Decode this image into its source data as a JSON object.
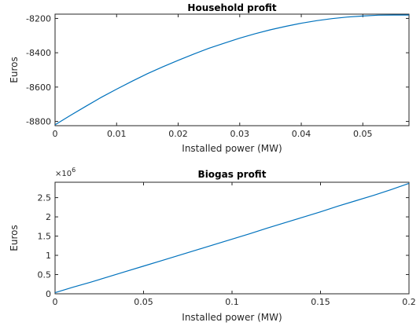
{
  "chart_data": [
    {
      "type": "line",
      "title": "Household profit",
      "xlabel": "Installed power (MW)",
      "ylabel": "Euros",
      "xlim": [
        0,
        0.0575
      ],
      "ylim": [
        -8825,
        -8175
      ],
      "xticks": [
        0,
        0.01,
        0.02,
        0.03,
        0.04,
        0.05
      ],
      "xtick_labels": [
        "0",
        "0.01",
        "0.02",
        "0.03",
        "0.04",
        "0.05"
      ],
      "yticks": [
        -8800,
        -8600,
        -8400,
        -8200
      ],
      "ytick_labels": [
        "-8800",
        "-8600",
        "-8400",
        "-8200"
      ],
      "grid": false,
      "color": "#0072bd",
      "series": [
        {
          "x": [
            0,
            0.0025,
            0.005,
            0.0075,
            0.01,
            0.0125,
            0.015,
            0.0175,
            0.02,
            0.0225,
            0.025,
            0.0275,
            0.03,
            0.0325,
            0.035,
            0.0375,
            0.04,
            0.0425,
            0.045,
            0.0475,
            0.05,
            0.0525,
            0.055,
            0.0575
          ],
          "y": [
            -8820,
            -8765,
            -8712,
            -8660,
            -8612,
            -8566,
            -8522,
            -8482,
            -8444,
            -8408,
            -8374,
            -8344,
            -8315,
            -8289,
            -8266,
            -8246,
            -8228,
            -8213,
            -8201,
            -8192,
            -8186,
            -8181,
            -8180,
            -8180
          ]
        }
      ]
    },
    {
      "type": "line",
      "title": "Biogas profit",
      "xlabel": "Installed power (MW)",
      "ylabel": "Euros",
      "exponent_label": "×10",
      "exponent_power": "6",
      "xlim": [
        0,
        0.2
      ],
      "ylim": [
        0,
        2.9
      ],
      "xticks": [
        0,
        0.05,
        0.1,
        0.15,
        0.2
      ],
      "xtick_labels": [
        "0",
        "0.05",
        "0.1",
        "0.15",
        "0.2"
      ],
      "yticks": [
        0,
        0.5,
        1,
        1.5,
        2,
        2.5
      ],
      "ytick_labels": [
        "0",
        "0.5",
        "1",
        "1.5",
        "2",
        "2.5"
      ],
      "grid": false,
      "color": "#0072bd",
      "series": [
        {
          "x": [
            0,
            0.01,
            0.02,
            0.03,
            0.04,
            0.05,
            0.06,
            0.07,
            0.08,
            0.09,
            0.1,
            0.11,
            0.12,
            0.13,
            0.14,
            0.15,
            0.16,
            0.17,
            0.18,
            0.19,
            0.2
          ],
          "y": [
            0.03,
            0.17,
            0.3,
            0.44,
            0.58,
            0.72,
            0.86,
            1.0,
            1.14,
            1.28,
            1.42,
            1.56,
            1.71,
            1.85,
            1.99,
            2.13,
            2.28,
            2.42,
            2.56,
            2.71,
            2.87
          ]
        }
      ]
    }
  ]
}
